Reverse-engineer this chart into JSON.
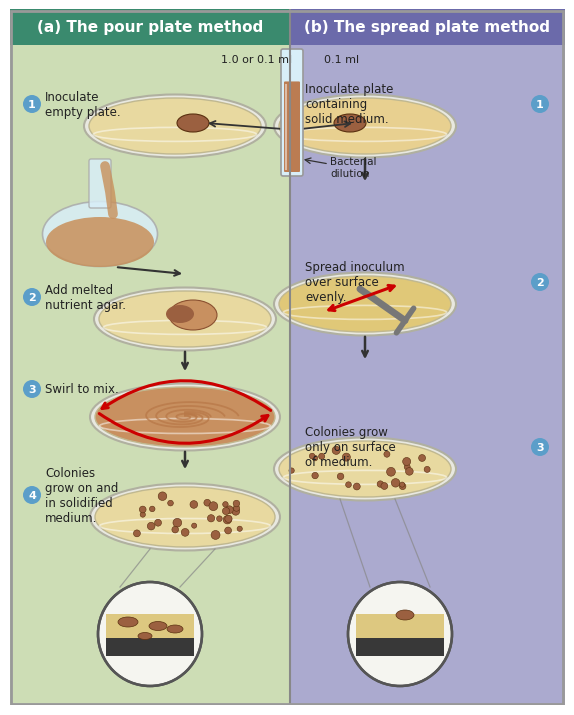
{
  "left_bg": "#cdddb5",
  "right_bg": "#abaacf",
  "left_header_bg": "#3a8a6e",
  "right_header_bg": "#6b6aaa",
  "header_text_color": "#ffffff",
  "left_title": "(a) The pour plate method",
  "right_title": "(b) The spread plate method",
  "step_circle_color": "#5b9ec9",
  "step_circle_text": "#ffffff",
  "plate_fill": "#e8d9a0",
  "plate_rim": "#c8c8b0",
  "plate_edge": "#aaaaaa",
  "colony_color": "#9B6040",
  "arrow_color": "#333333",
  "text_color": "#222222",
  "left_steps": [
    "Inoculate\nempty plate.",
    "Add melted\nnutrient agar.",
    "Swirl to mix.",
    "Colonies\ngrow on and\nin solidified\nmedium."
  ],
  "right_steps": [
    "Inoculate plate\ncontaining\nsolid medium.",
    "Spread inoculum\nover surface\nevenly.",
    "Colonies grow\nonly on surface\nof medium."
  ],
  "label_1_0_or_01": "1.0 or 0.1 ml",
  "label_01": "0.1 ml",
  "label_bacterial_dilution": "Bacterial\ndilution",
  "swirl_fill": "#c89060",
  "spreader_color": "#777777",
  "red_arrow_color": "#cc0000",
  "magnify_bg": "#ddc880",
  "tube_fill": "#b87040",
  "tube_glass": "#d8eef8",
  "flask_fill": "#c8905a",
  "agar_dark": "#7a4820",
  "mag_base": "#383838",
  "border_color": "#999999"
}
